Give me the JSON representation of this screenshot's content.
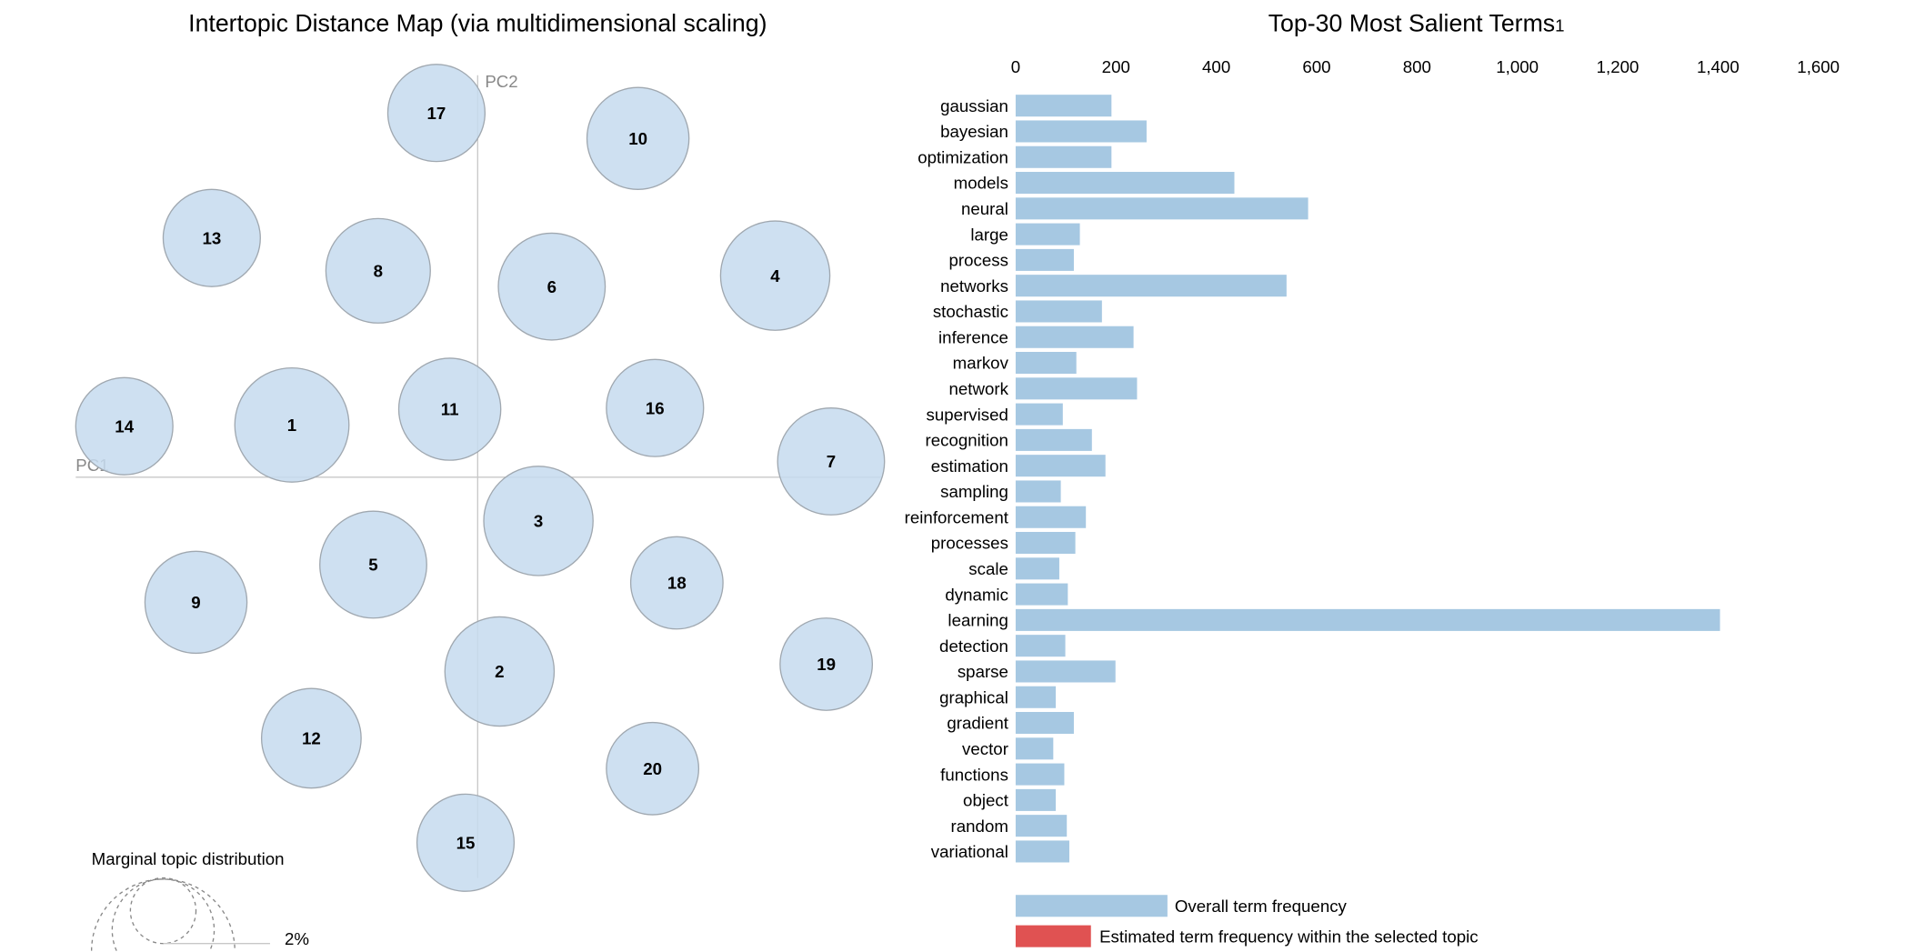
{
  "chart_data": [
    {
      "type": "scatter",
      "title": "Intertopic Distance Map (via multidimensional scaling)",
      "xlabel": "PC1",
      "ylabel": "PC2",
      "topics": [
        "17",
        "10",
        "13",
        "8",
        "6",
        "4",
        "14",
        "1",
        "11",
        "16",
        "7",
        "3",
        "5",
        "18",
        "9",
        "2",
        "19",
        "12",
        "20",
        "15"
      ],
      "legend": {
        "title": "Marginal topic distribution",
        "labels": [
          "2%"
        ]
      },
      "colors": {
        "topic_fill": "#c6dbef",
        "topic_stroke": "#a0a8b0"
      }
    },
    {
      "type": "bar",
      "orientation": "horizontal",
      "title": "Top-30 Most Salient Terms",
      "title_sup": "1",
      "xlim": [
        0,
        1600
      ],
      "ticks": [
        "0",
        "200",
        "400",
        "600",
        "800",
        "1,000",
        "1,200",
        "1,400",
        "1,600"
      ],
      "tick_values": [
        0,
        200,
        400,
        600,
        800,
        1000,
        1200,
        1400,
        1600
      ],
      "categories": [
        "gaussian",
        "bayesian",
        "optimization",
        "models",
        "neural",
        "large",
        "process",
        "networks",
        "stochastic",
        "inference",
        "markov",
        "network",
        "supervised",
        "recognition",
        "estimation",
        "sampling",
        "reinforcement",
        "processes",
        "scale",
        "dynamic",
        "learning",
        "detection",
        "sparse",
        "graphical",
        "gradient",
        "vector",
        "functions",
        "object",
        "random",
        "variational"
      ],
      "series": [
        {
          "name": "Overall term frequency",
          "color": "#a6c8e2",
          "values": [
            191,
            261,
            191,
            436,
            583,
            128,
            116,
            540,
            172,
            235,
            121,
            242,
            94,
            152,
            179,
            90,
            140,
            119,
            87,
            104,
            1404,
            99,
            199,
            80,
            116,
            75,
            97,
            80,
            102,
            107
          ]
        }
      ],
      "legend": [
        {
          "label": "Overall term frequency",
          "color": "#a6c8e2"
        },
        {
          "label": "Estimated term frequency within the selected topic",
          "color": "#e05252"
        }
      ]
    }
  ]
}
